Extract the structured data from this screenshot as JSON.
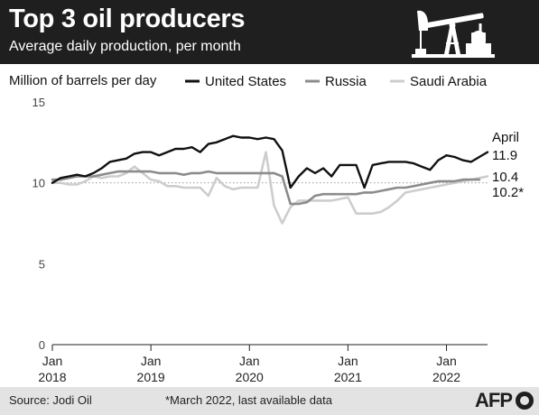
{
  "header": {
    "title": "Top 3 oil producers",
    "subtitle": "Average daily production, per month",
    "icon": "pumpjack-icon"
  },
  "footer": {
    "source": "Source: Jodi Oil",
    "note": "*March 2022, last available data",
    "brand": "AFP"
  },
  "colors": {
    "header_bg": "#1f1f1f",
    "footer_bg": "#e3e3e3",
    "united_states": "#111111",
    "russia": "#8c8c8c",
    "saudi_arabia": "#cdcdcd"
  },
  "chart_data": {
    "type": "line",
    "ylabel": "Million of barrels per day",
    "ylim": [
      0,
      15
    ],
    "yticks": [
      "0",
      "5",
      "10",
      "15"
    ],
    "grid": "dotted line at 10 only",
    "legend_placement": "top",
    "x_ticks": [
      {
        "month": 0,
        "line1": "Jan",
        "line2": "2018"
      },
      {
        "month": 12,
        "line1": "Jan",
        "line2": "2019"
      },
      {
        "month": 24,
        "line1": "Jan",
        "line2": "2020"
      },
      {
        "month": 36,
        "line1": "Jan",
        "line2": "2021"
      },
      {
        "month": 48,
        "line1": "Jan",
        "line2": "2022"
      }
    ],
    "series": [
      {
        "name": "United States",
        "key": "us",
        "values": [
          10.0,
          10.3,
          10.4,
          10.5,
          10.4,
          10.6,
          10.9,
          11.3,
          11.4,
          11.5,
          11.8,
          11.9,
          11.9,
          11.7,
          11.9,
          12.1,
          12.1,
          12.2,
          11.9,
          12.4,
          12.5,
          12.7,
          12.9,
          12.8,
          12.8,
          12.7,
          12.8,
          12.7,
          12.0,
          9.7,
          10.4,
          10.9,
          10.6,
          10.9,
          10.4,
          11.1,
          11.1,
          11.1,
          9.7,
          11.1,
          11.2,
          11.3,
          11.3,
          11.3,
          11.2,
          11.0,
          10.8,
          11.4,
          11.7,
          11.6,
          11.4,
          11.3,
          11.6,
          11.9
        ],
        "end_labels": [
          "April",
          "11.9"
        ]
      },
      {
        "name": "Russia",
        "key": "ru",
        "values": [
          10.2,
          10.2,
          10.3,
          10.4,
          10.4,
          10.4,
          10.5,
          10.6,
          10.7,
          10.7,
          10.7,
          10.7,
          10.7,
          10.6,
          10.6,
          10.6,
          10.5,
          10.6,
          10.6,
          10.7,
          10.6,
          10.6,
          10.6,
          10.6,
          10.6,
          10.6,
          10.6,
          10.6,
          10.4,
          8.7,
          8.7,
          8.8,
          9.2,
          9.3,
          9.3,
          9.3,
          9.3,
          9.3,
          9.4,
          9.4,
          9.5,
          9.6,
          9.7,
          9.7,
          9.8,
          9.9,
          10.0,
          10.1,
          10.1,
          10.1,
          10.2,
          10.2,
          10.2
        ],
        "end_labels": [
          "10.2*"
        ]
      },
      {
        "name": "Saudi Arabia",
        "key": "sa",
        "values": [
          10.0,
          10.0,
          9.9,
          9.9,
          10.1,
          10.4,
          10.3,
          10.4,
          10.4,
          10.6,
          11.0,
          10.6,
          10.2,
          10.1,
          9.8,
          9.8,
          9.7,
          9.7,
          9.7,
          9.2,
          10.3,
          9.8,
          9.6,
          9.7,
          9.7,
          9.7,
          11.9,
          8.6,
          7.5,
          8.5,
          8.9,
          8.9,
          8.9,
          8.9,
          8.9,
          9.0,
          9.1,
          8.1,
          8.1,
          8.1,
          8.2,
          8.5,
          8.9,
          9.4,
          9.5,
          9.6,
          9.7,
          9.8,
          9.9,
          10.0,
          10.1,
          10.2,
          10.3,
          10.4
        ],
        "end_labels": [
          "10.4"
        ]
      }
    ]
  }
}
